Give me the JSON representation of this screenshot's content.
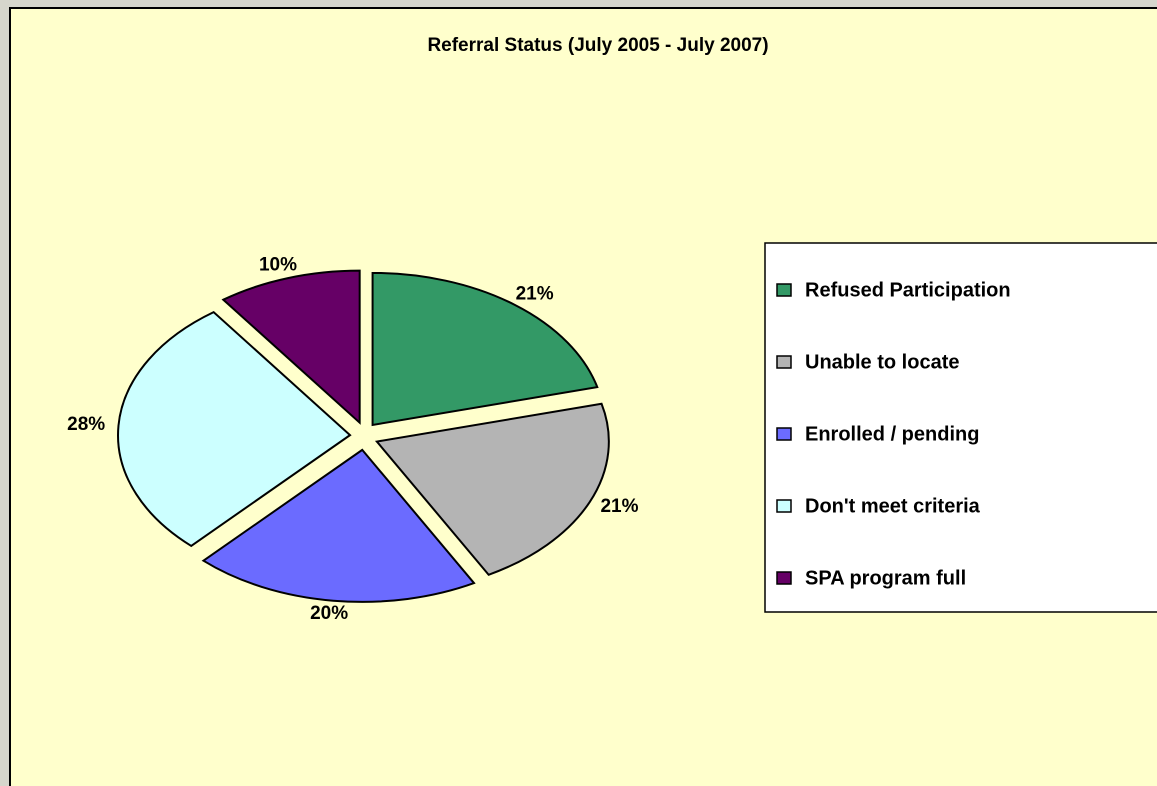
{
  "chart_data": {
    "type": "pie",
    "title": "Referral Status (July 2005 - July 2007)",
    "categories": [
      "Refused Participation",
      "Unable to locate",
      "Enrolled / pending",
      "Don't meet criteria",
      "SPA program full"
    ],
    "values": [
      21,
      21,
      20,
      28,
      10
    ],
    "value_labels": [
      "21%",
      "21%",
      "20%",
      "28%",
      "10%"
    ],
    "colors": [
      "#339966",
      "#b4b4b4",
      "#6b6bff",
      "#ccffff",
      "#660066"
    ],
    "legend": "right"
  }
}
